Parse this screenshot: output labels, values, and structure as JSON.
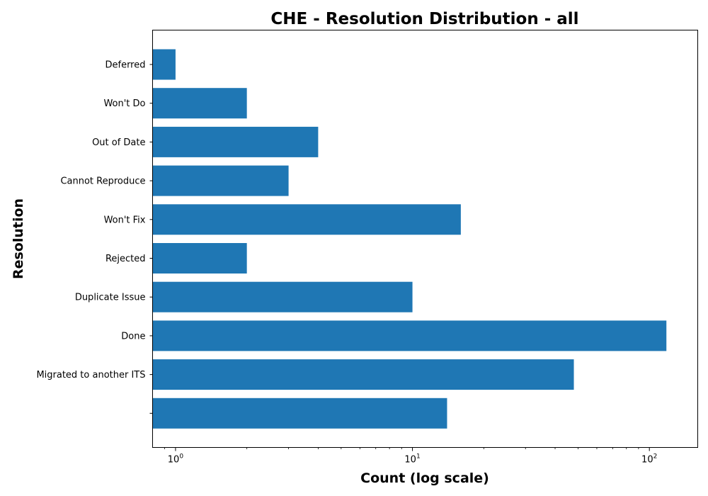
{
  "chart_data": {
    "type": "bar",
    "orientation": "horizontal",
    "title": "CHE - Resolution Distribution - all",
    "xlabel": "Count (log scale)",
    "ylabel": "Resolution",
    "xscale": "log",
    "xlim": [
      0.8,
      160
    ],
    "grid": false,
    "legend": "none",
    "bar_color": "#1f77b4",
    "x_ticks": [
      {
        "value": 1,
        "base": "10",
        "exp": "0"
      },
      {
        "value": 10,
        "base": "10",
        "exp": "1"
      },
      {
        "value": 100,
        "base": "10",
        "exp": "2"
      }
    ],
    "categories": [
      "Deferred",
      "Won't Do",
      "Out of Date",
      "Cannot Reproduce",
      "Won't Fix",
      "Rejected",
      "Duplicate Issue",
      "Done",
      "Migrated to another ITS",
      ""
    ],
    "values": [
      1,
      2,
      4,
      3,
      16,
      2,
      10,
      118,
      48,
      14
    ]
  }
}
